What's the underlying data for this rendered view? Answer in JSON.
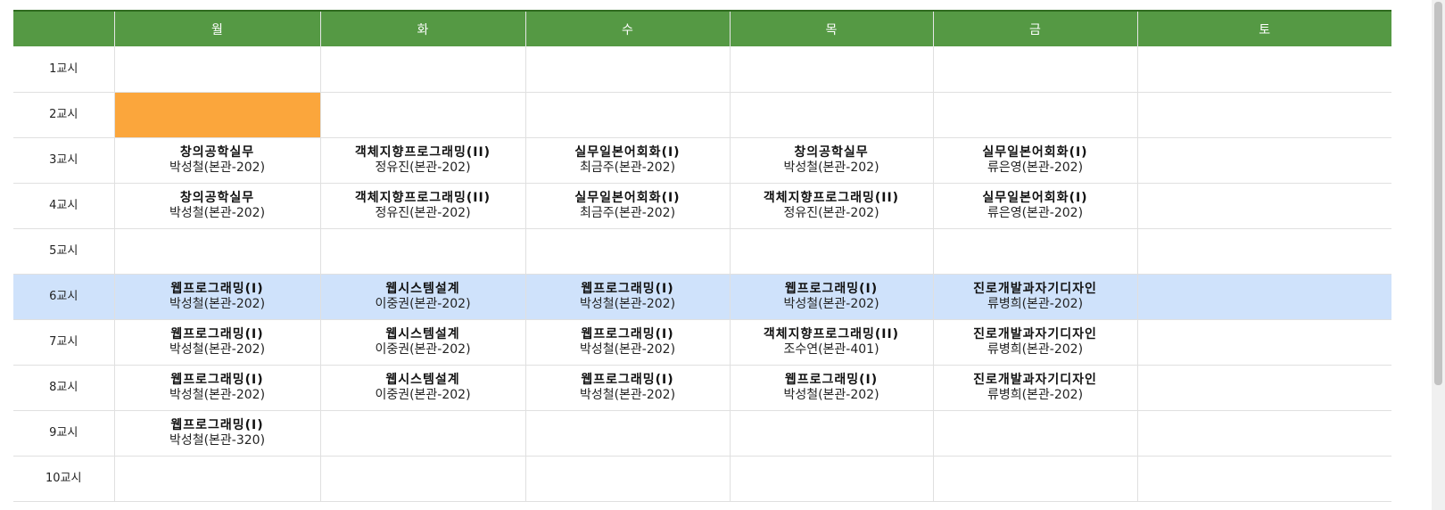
{
  "header": {
    "corner": "",
    "days": [
      "월",
      "화",
      "수",
      "목",
      "금",
      "토"
    ]
  },
  "rows": [
    {
      "period": "1교시",
      "cells": [
        {
          "s": "",
          "t": ""
        },
        {
          "s": "",
          "t": ""
        },
        {
          "s": "",
          "t": ""
        },
        {
          "s": "",
          "t": ""
        },
        {
          "s": "",
          "t": ""
        },
        {
          "s": "",
          "t": ""
        }
      ]
    },
    {
      "period": "2교시",
      "cells": [
        {
          "s": "",
          "t": ""
        },
        {
          "s": "",
          "t": ""
        },
        {
          "s": "",
          "t": ""
        },
        {
          "s": "",
          "t": ""
        },
        {
          "s": "",
          "t": ""
        },
        {
          "s": "",
          "t": ""
        }
      ]
    },
    {
      "period": "3교시",
      "cells": [
        {
          "s": "창의공학실무",
          "t": "박성철(본관-202)"
        },
        {
          "s": "객체지향프로그래밍(II)",
          "t": "정유진(본관-202)"
        },
        {
          "s": "실무일본어회화(I)",
          "t": "최금주(본관-202)"
        },
        {
          "s": "창의공학실무",
          "t": "박성철(본관-202)"
        },
        {
          "s": "실무일본어회화(I)",
          "t": "류은영(본관-202)"
        },
        {
          "s": "",
          "t": ""
        }
      ]
    },
    {
      "period": "4교시",
      "cells": [
        {
          "s": "창의공학실무",
          "t": "박성철(본관-202)"
        },
        {
          "s": "객체지향프로그래밍(II)",
          "t": "정유진(본관-202)"
        },
        {
          "s": "실무일본어회화(I)",
          "t": "최금주(본관-202)"
        },
        {
          "s": "객체지향프로그래밍(II)",
          "t": "정유진(본관-202)"
        },
        {
          "s": "실무일본어회화(I)",
          "t": "류은영(본관-202)"
        },
        {
          "s": "",
          "t": ""
        }
      ]
    },
    {
      "period": "5교시",
      "cells": [
        {
          "s": "",
          "t": ""
        },
        {
          "s": "",
          "t": ""
        },
        {
          "s": "",
          "t": ""
        },
        {
          "s": "",
          "t": ""
        },
        {
          "s": "",
          "t": ""
        },
        {
          "s": "",
          "t": ""
        }
      ]
    },
    {
      "period": "6교시",
      "cells": [
        {
          "s": "웹프로그래밍(I)",
          "t": "박성철(본관-202)"
        },
        {
          "s": "웹시스템설계",
          "t": "이중권(본관-202)"
        },
        {
          "s": "웹프로그래밍(I)",
          "t": "박성철(본관-202)"
        },
        {
          "s": "웹프로그래밍(I)",
          "t": "박성철(본관-202)"
        },
        {
          "s": "진로개발과자기디자인",
          "t": "류병희(본관-202)"
        },
        {
          "s": "",
          "t": ""
        }
      ]
    },
    {
      "period": "7교시",
      "cells": [
        {
          "s": "웹프로그래밍(I)",
          "t": "박성철(본관-202)"
        },
        {
          "s": "웹시스템설계",
          "t": "이중권(본관-202)"
        },
        {
          "s": "웹프로그래밍(I)",
          "t": "박성철(본관-202)"
        },
        {
          "s": "객체지향프로그래밍(II)",
          "t": "조수연(본관-401)"
        },
        {
          "s": "진로개발과자기디자인",
          "t": "류병희(본관-202)"
        },
        {
          "s": "",
          "t": ""
        }
      ]
    },
    {
      "period": "8교시",
      "cells": [
        {
          "s": "웹프로그래밍(I)",
          "t": "박성철(본관-202)"
        },
        {
          "s": "웹시스템설계",
          "t": "이중권(본관-202)"
        },
        {
          "s": "웹프로그래밍(I)",
          "t": "박성철(본관-202)"
        },
        {
          "s": "웹프로그래밍(I)",
          "t": "박성철(본관-202)"
        },
        {
          "s": "진로개발과자기디자인",
          "t": "류병희(본관-202)"
        },
        {
          "s": "",
          "t": ""
        }
      ]
    },
    {
      "period": "9교시",
      "cells": [
        {
          "s": "웹프로그래밍(I)",
          "t": "박성철(본관-320)"
        },
        {
          "s": "",
          "t": ""
        },
        {
          "s": "",
          "t": ""
        },
        {
          "s": "",
          "t": ""
        },
        {
          "s": "",
          "t": ""
        },
        {
          "s": "",
          "t": ""
        }
      ]
    },
    {
      "period": "10교시",
      "cells": [
        {
          "s": "",
          "t": ""
        },
        {
          "s": "",
          "t": ""
        },
        {
          "s": "",
          "t": ""
        },
        {
          "s": "",
          "t": ""
        },
        {
          "s": "",
          "t": ""
        },
        {
          "s": "",
          "t": ""
        }
      ]
    }
  ],
  "colors": {
    "header_bg": "#559944",
    "highlight_row": "#cfe2fb",
    "selected_cell": "#fba63c"
  }
}
